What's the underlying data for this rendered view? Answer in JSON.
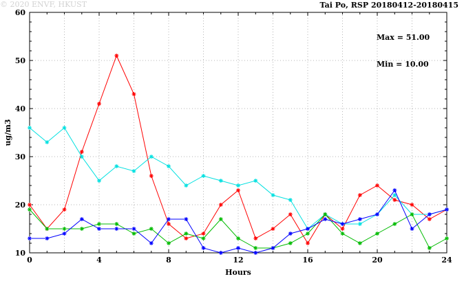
{
  "header": {
    "title": "Tai Po, RSP 20180412-20180415"
  },
  "annotations": {
    "max_label": "Max = 51.00",
    "min_label": "Min = 10.00"
  },
  "watermark": "© 2020 ENVF, HKUST",
  "chart_data": {
    "type": "line",
    "title": "Tai Po, RSP 20180412-20180415",
    "xlabel": "Hours",
    "ylabel": "ug/m3",
    "xlim": [
      0,
      24
    ],
    "ylim": [
      10,
      60
    ],
    "xticks": [
      0,
      4,
      8,
      12,
      16,
      20,
      24
    ],
    "yticks": [
      10,
      20,
      30,
      40,
      50,
      60
    ],
    "x_minor_step": 1,
    "y_minor_step": 2,
    "grid": true,
    "grid_x_step": 2,
    "grid_y_step": 10,
    "max": 51.0,
    "min": 10.0,
    "x": [
      0,
      1,
      2,
      3,
      4,
      5,
      6,
      7,
      8,
      9,
      10,
      11,
      12,
      13,
      14,
      15,
      16,
      17,
      18,
      19,
      20,
      21,
      22,
      23,
      24
    ],
    "series": [
      {
        "name": "red",
        "color": "#ff0000",
        "values": [
          20,
          15,
          19,
          31,
          41,
          51,
          43,
          26,
          16,
          13,
          14,
          20,
          23,
          13,
          15,
          18,
          12,
          18,
          15,
          22,
          24,
          21,
          20,
          17,
          19
        ]
      },
      {
        "name": "cyan",
        "color": "#00e0e0",
        "values": [
          36,
          33,
          36,
          30,
          25,
          28,
          27,
          30,
          28,
          24,
          26,
          25,
          24,
          25,
          22,
          21,
          15,
          18,
          16,
          16,
          18,
          22,
          18,
          18,
          19
        ]
      },
      {
        "name": "green",
        "color": "#00bb00",
        "values": [
          19,
          15,
          15,
          15,
          16,
          16,
          14,
          15,
          12,
          14,
          13,
          17,
          13,
          11,
          11,
          12,
          14,
          18,
          14,
          12,
          14,
          16,
          18,
          11,
          13
        ]
      },
      {
        "name": "blue",
        "color": "#0000ff",
        "values": [
          13,
          13,
          14,
          17,
          15,
          15,
          15,
          12,
          17,
          17,
          11,
          10,
          11,
          10,
          11,
          14,
          15,
          17,
          16,
          17,
          18,
          23,
          15,
          18,
          19
        ]
      }
    ]
  }
}
